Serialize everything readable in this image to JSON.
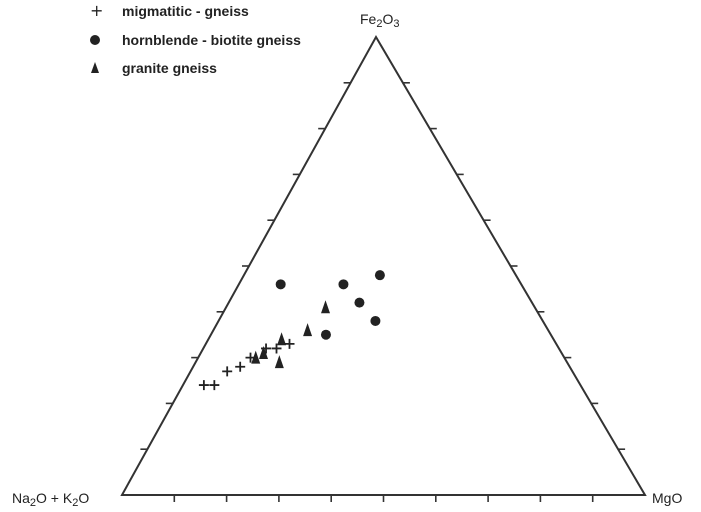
{
  "chart_data": {
    "type": "scatter",
    "subtype": "ternary",
    "vertices": {
      "top": "Fe2O3",
      "left": "Na2O + K2O",
      "right": "MgO"
    },
    "tick_interval_percent": 10,
    "components_order": [
      "Na2O + K2O",
      "MgO",
      "Fe2O3"
    ],
    "legend_placement": "top-left",
    "series": [
      {
        "name": "migmatitic - gneiss",
        "marker": "plus",
        "points": [
          [
            72,
            4,
            24
          ],
          [
            70,
            6,
            24
          ],
          [
            66,
            7,
            27
          ],
          [
            63,
            9,
            28
          ],
          [
            60,
            10,
            30
          ],
          [
            56,
            12,
            32
          ],
          [
            54,
            14,
            32
          ],
          [
            51,
            16,
            33
          ]
        ]
      },
      {
        "name": "hornblende - biotite gneiss",
        "marker": "circle",
        "points": [
          [
            43,
            22,
            35
          ],
          [
            34,
            20,
            46
          ],
          [
            26,
            26,
            48
          ],
          [
            32,
            30,
            38
          ],
          [
            33,
            25,
            42
          ],
          [
            46,
            8,
            46
          ]
        ]
      },
      {
        "name": "granite gneiss",
        "marker": "triangle",
        "points": [
          [
            40,
            19,
            41
          ],
          [
            46,
            18,
            36
          ],
          [
            55,
            16,
            29
          ],
          [
            52,
            14,
            34
          ],
          [
            57,
            12,
            31
          ],
          [
            59,
            11,
            30
          ]
        ]
      }
    ]
  }
}
